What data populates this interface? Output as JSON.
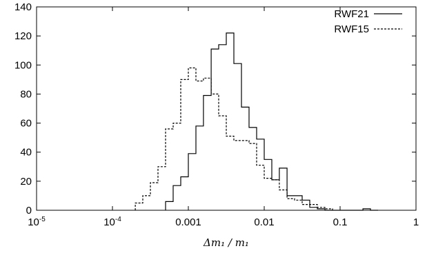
{
  "chart_data": {
    "type": "step",
    "xlabel": "Δm₁ / m₁",
    "xscale": "log",
    "xlim": [
      1e-05,
      1
    ],
    "ylim": [
      0,
      140
    ],
    "grid": false,
    "legend_position": "top-right",
    "x_ticks": [
      {
        "value": 1e-05,
        "base": "10",
        "exp": "-5"
      },
      {
        "value": 0.0001,
        "base": "10",
        "exp": "-4"
      },
      {
        "value": 0.001,
        "text": "0.001"
      },
      {
        "value": 0.01,
        "text": "0.01"
      },
      {
        "value": 0.1,
        "text": "0.1"
      },
      {
        "value": 1,
        "text": "1"
      }
    ],
    "y_ticks": [
      0,
      20,
      40,
      60,
      80,
      100,
      120,
      140
    ],
    "series": [
      {
        "name": "RWF21",
        "style": "solid",
        "color": "#000000",
        "edges": [
          0.000501,
          0.000631,
          0.000794,
          0.001,
          0.00126,
          0.00158,
          0.002,
          0.00251,
          0.00316,
          0.00398,
          0.00501,
          0.00631,
          0.00794,
          0.01,
          0.0126,
          0.0158,
          0.02,
          0.0251,
          0.0316,
          0.0398,
          0.0501,
          0.0631,
          0.0794,
          0.1,
          0.126,
          0.158,
          0.2,
          0.251,
          0.316
        ],
        "counts": [
          6,
          17,
          23,
          39,
          58,
          79,
          111,
          114,
          122,
          101,
          71,
          57,
          49,
          35,
          21,
          29,
          10,
          10,
          7,
          2,
          1,
          0,
          0,
          0,
          0,
          0,
          1,
          0
        ]
      },
      {
        "name": "RWF15",
        "style": "dashed",
        "color": "#000000",
        "edges": [
          0.0002,
          0.000251,
          0.000316,
          0.000398,
          0.000501,
          0.000631,
          0.000794,
          0.001,
          0.00126,
          0.00158,
          0.002,
          0.00251,
          0.00316,
          0.00398,
          0.00501,
          0.00631,
          0.00794,
          0.01,
          0.0126,
          0.0158,
          0.02,
          0.0251,
          0.0316,
          0.0398,
          0.0501,
          0.0631,
          0.0794
        ],
        "counts": [
          5,
          10,
          19,
          30,
          56,
          60,
          90,
          98,
          89,
          91,
          80,
          65,
          51,
          48,
          48,
          46,
          31,
          22,
          21,
          14,
          8,
          7,
          4,
          4,
          2,
          1
        ]
      }
    ]
  }
}
